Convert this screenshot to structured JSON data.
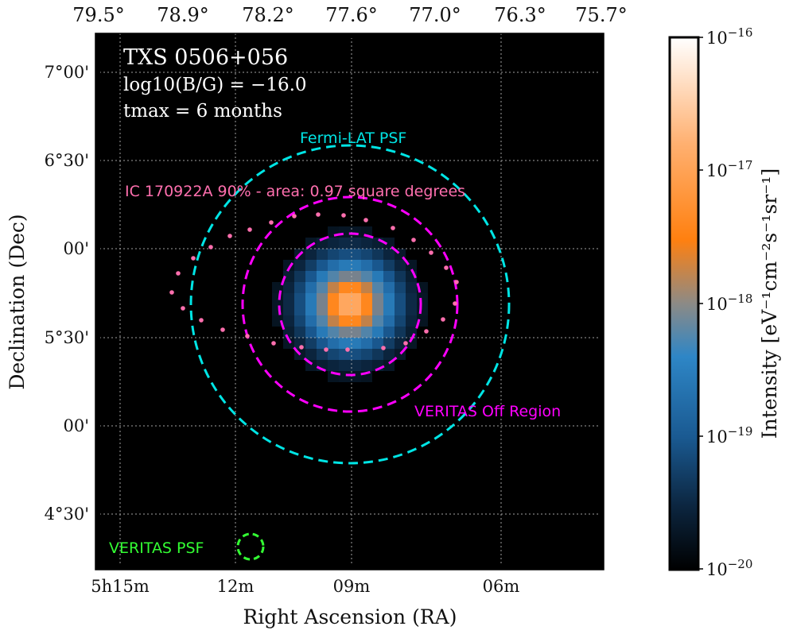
{
  "chart_data": {
    "type": "heatmap",
    "title": "TXS 0506+056",
    "info_lines": [
      "log10(B/G) = −16.0",
      "tmax = 6 months"
    ],
    "source": "TXS 0506+056",
    "log10_B_over_G": -16.0,
    "t_max_months": 6,
    "xlabel": "Right Ascension (RA)",
    "ylabel": "Declination (Dec)",
    "x_bottom_ticks": [
      "5h15m",
      "12m",
      "09m",
      "06m"
    ],
    "x_top_ticks": [
      "79.5°",
      "78.9°",
      "78.2°",
      "77.6°",
      "77.0°",
      "76.3°",
      "75.7°"
    ],
    "y_ticks": [
      "7°00'",
      "6°30'",
      "00'",
      "5°30'",
      "00'",
      "4°30'"
    ],
    "grid": true,
    "colormap": "black-blue-orange-white",
    "colorbar": {
      "label": "Intensity [eV⁻¹cm⁻²s⁻¹sr⁻¹]",
      "scale": "log",
      "range": [
        1e-20,
        1e-16
      ],
      "ticks": [
        "10^-20",
        "10^-19",
        "10^-18",
        "10^-17",
        "10^-16"
      ]
    },
    "annotations": [
      {
        "label": "Fermi-LAT PSF",
        "color": "#00e5e5",
        "shape": "dashed circle"
      },
      {
        "label": "IC 170922A 90% - area: 0.97 square degrees",
        "color": "#ff6fae",
        "shape": "dotted contour"
      },
      {
        "label": "VERITAS Off Region",
        "color": "#ff00ff",
        "shape": "dashed annulus"
      },
      {
        "label": "VERITAS PSF",
        "color": "#33ff33",
        "shape": "dashed circle"
      }
    ]
  }
}
